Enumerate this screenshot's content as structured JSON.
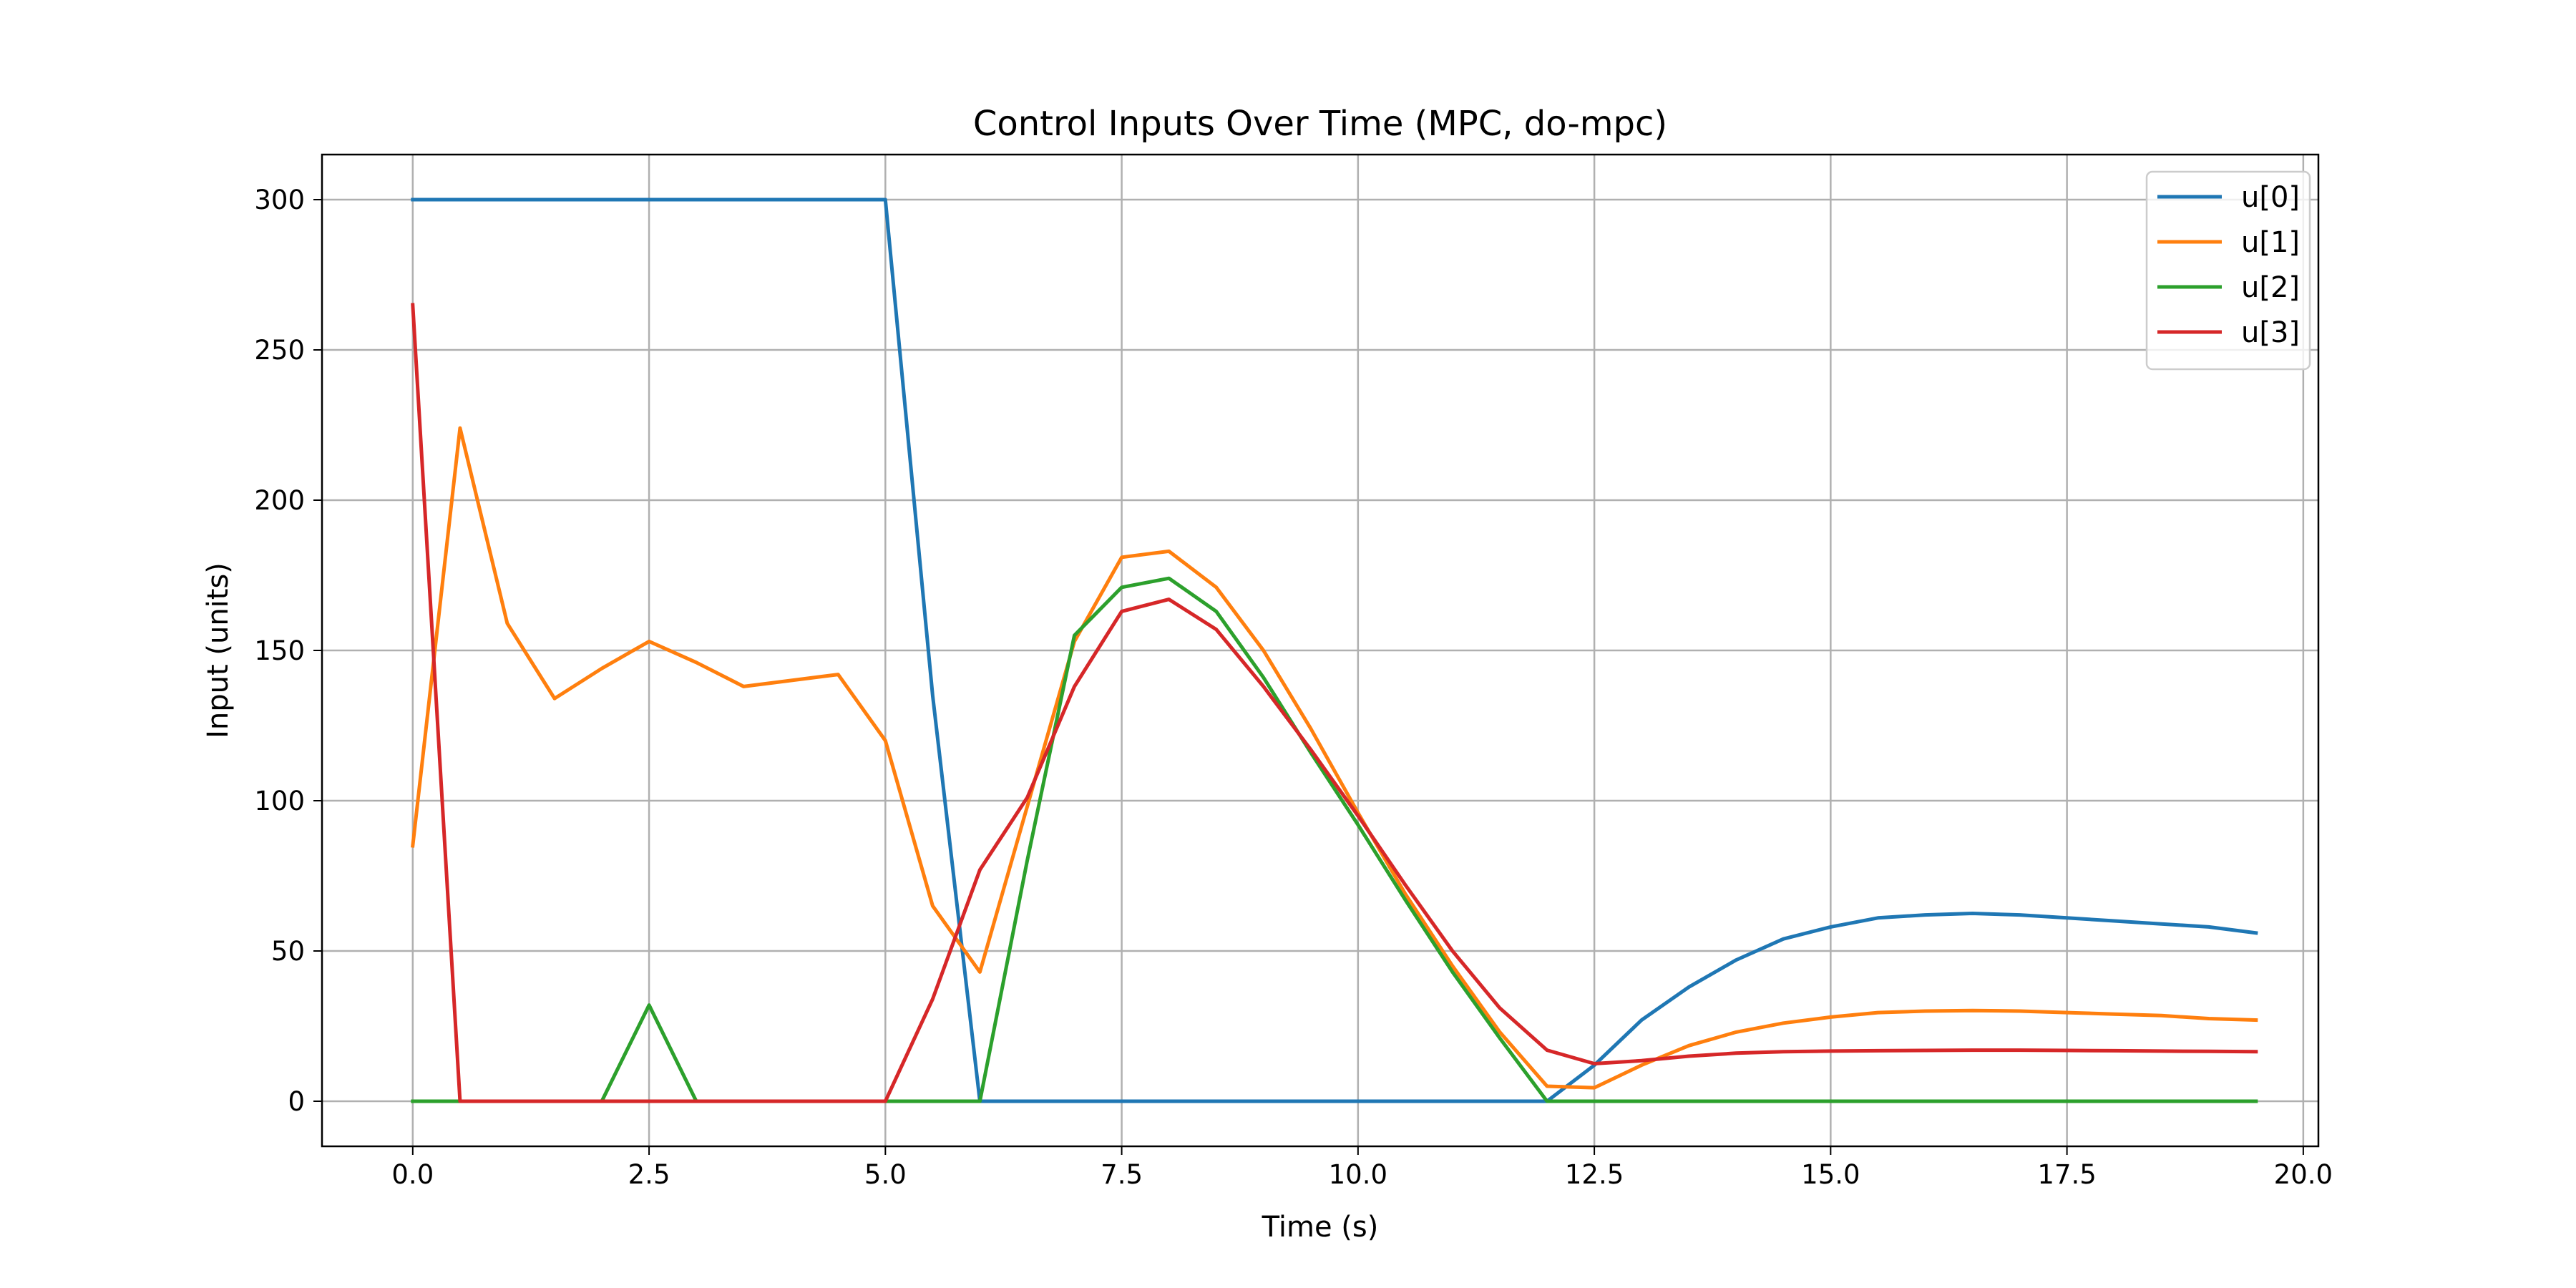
{
  "chart_data": {
    "type": "line",
    "title": "Control Inputs Over Time (MPC, do-mpc)",
    "xlabel": "Time (s)",
    "ylabel": "Input (units)",
    "xlim": [
      -0.96,
      20.16
    ],
    "ylim": [
      -15,
      315
    ],
    "xticks": [
      0,
      2.5,
      5,
      7.5,
      10,
      12.5,
      15,
      17.5,
      20
    ],
    "xtick_labels": [
      "0.0",
      "2.5",
      "5.0",
      "7.5",
      "10.0",
      "12.5",
      "15.0",
      "17.5",
      "20.0"
    ],
    "yticks": [
      0,
      50,
      100,
      150,
      200,
      250,
      300
    ],
    "ytick_labels": [
      "0",
      "50",
      "100",
      "150",
      "200",
      "250",
      "300"
    ],
    "grid": true,
    "legend_position": "top-right",
    "x": [
      0,
      0.5,
      1,
      1.5,
      2,
      2.5,
      3,
      3.5,
      4,
      4.5,
      5,
      5.5,
      6,
      6.5,
      7,
      7.5,
      8,
      8.5,
      9,
      9.5,
      10,
      10.5,
      11,
      11.5,
      12,
      12.5,
      13,
      13.5,
      14,
      14.5,
      15,
      15.5,
      16,
      16.5,
      17,
      17.5,
      18,
      18.5,
      19,
      19.5
    ],
    "series": [
      {
        "name": "u[0]",
        "color": "#1f77b4",
        "values": [
          300,
          300,
          300,
          300,
          300,
          300,
          300,
          300,
          300,
          300,
          300,
          135,
          0,
          0,
          0,
          0,
          0,
          0,
          0,
          0,
          0,
          0,
          0,
          0,
          0,
          12,
          27,
          38,
          47,
          54,
          58,
          61,
          62,
          62.5,
          62,
          61,
          60,
          59,
          58,
          56
        ]
      },
      {
        "name": "u[1]",
        "color": "#ff7f0e",
        "values": [
          85,
          224,
          159,
          134,
          144,
          153,
          146,
          138,
          140,
          142,
          120,
          65,
          43,
          98,
          153,
          181,
          183,
          171,
          150,
          124,
          96,
          69,
          45,
          23,
          5,
          4.5,
          12,
          18.5,
          23,
          26,
          28,
          29.5,
          30,
          30.2,
          30,
          29.5,
          29,
          28.5,
          27.5,
          27
        ]
      },
      {
        "name": "u[2]",
        "color": "#2ca02c",
        "values": [
          0,
          0,
          0,
          0,
          0,
          32,
          0,
          0,
          0,
          0,
          0,
          0,
          0,
          80,
          155,
          171,
          174,
          163,
          141,
          116,
          92,
          67,
          43,
          21,
          0,
          0,
          0,
          0,
          0,
          0,
          0,
          0,
          0,
          0,
          0,
          0,
          0,
          0,
          0,
          0
        ]
      },
      {
        "name": "u[3]",
        "color": "#d62728",
        "values": [
          265,
          0,
          0,
          0,
          0,
          0,
          0,
          0,
          0,
          0,
          0,
          34,
          77,
          101,
          138,
          163,
          167,
          157,
          138,
          117,
          95,
          72,
          50,
          31,
          17,
          12.5,
          13.5,
          15,
          16,
          16.5,
          16.7,
          16.8,
          16.9,
          17,
          17,
          16.9,
          16.8,
          16.7,
          16.6,
          16.5
        ]
      }
    ]
  }
}
